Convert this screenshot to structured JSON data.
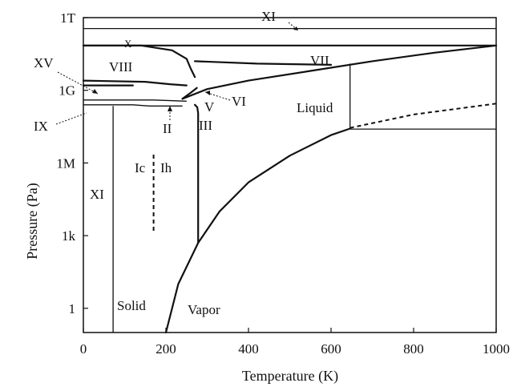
{
  "chart_data": {
    "type": "phase-diagram",
    "xlabel": "Temperature (K)",
    "ylabel": "Pressure (Pa)",
    "xlim": [
      0,
      1000
    ],
    "ylim_log10": [
      -1,
      12
    ],
    "x_ticks": [
      "0",
      "200",
      "400",
      "600",
      "800",
      "1000"
    ],
    "y_ticks": [
      {
        "label": "1",
        "log10": 0
      },
      {
        "label": "1k",
        "log10": 3
      },
      {
        "label": "1M",
        "log10": 6
      },
      {
        "label": "1G",
        "log10": 9
      },
      {
        "label": "1T",
        "log10": 12
      }
    ],
    "region_labels": [
      "XI",
      "X",
      "VIII",
      "VII",
      "XV",
      "VI",
      "Liquid",
      "V",
      "IX",
      "II",
      "III",
      "Ic",
      "Ih",
      "XI",
      "Solid",
      "Vapor"
    ],
    "boundaries": [
      {
        "name": "sublimation",
        "points": [
          [
            200,
            -1
          ],
          [
            230,
            1
          ],
          [
            278,
            2.7
          ],
          [
            330,
            4
          ],
          [
            400,
            5.2
          ],
          [
            500,
            6.3
          ],
          [
            600,
            7.15
          ],
          [
            646,
            7.42
          ]
        ]
      },
      {
        "name": "vaporization",
        "points": [
          [
            278,
            2.7
          ],
          [
            278,
            8.05
          ],
          [
            276,
            8.3
          ],
          [
            270,
            8.4
          ]
        ]
      },
      {
        "name": "melting-upper",
        "points": [
          [
            240,
            8.65
          ],
          [
            300,
            9.05
          ],
          [
            400,
            9.4
          ],
          [
            550,
            9.8
          ],
          [
            700,
            10.2
          ],
          [
            850,
            10.55
          ],
          [
            1000,
            10.85
          ]
        ]
      },
      {
        "name": "ice-XV-VIII",
        "points": [
          [
            0,
            9.2
          ],
          [
            120,
            9.2
          ]
        ]
      },
      {
        "name": "ice-VII-VIII",
        "points": [
          [
            0,
            10.85
          ],
          [
            140,
            10.85
          ],
          [
            215,
            10.65
          ],
          [
            250,
            10.3
          ],
          [
            260,
            9.9
          ],
          [
            270,
            9.55
          ]
        ]
      },
      {
        "name": "ice-VIII-VI",
        "points": [
          [
            0,
            9.4
          ],
          [
            150,
            9.35
          ],
          [
            210,
            9.25
          ],
          [
            250,
            9.2
          ]
        ]
      },
      {
        "name": "ice-VII-liquid",
        "points": [
          [
            270,
            10.2
          ],
          [
            420,
            10.1
          ],
          [
            600,
            10.05
          ]
        ]
      },
      {
        "name": "ice-X",
        "points": [
          [
            0,
            11.55
          ],
          [
            1000,
            11.55
          ]
        ]
      },
      {
        "name": "ice-X-VIII",
        "points": [
          [
            0,
            10.85
          ],
          [
            1000,
            10.85
          ]
        ]
      },
      {
        "name": "ice-II-III",
        "points": [
          [
            0,
            8.6
          ],
          [
            170,
            8.6
          ],
          [
            250,
            8.55
          ]
        ]
      },
      {
        "name": "ice-IX",
        "points": [
          [
            0,
            8.4
          ],
          [
            120,
            8.4
          ],
          [
            160,
            8.35
          ],
          [
            240,
            8.35
          ]
        ]
      },
      {
        "name": "ice-XI-Ih",
        "points": [
          [
            72,
            -1
          ],
          [
            72,
            8.35
          ]
        ]
      },
      {
        "name": "ice-Ic-Ih",
        "points": [
          [
            170,
            3.2
          ],
          [
            170,
            6.4
          ]
        ]
      },
      {
        "name": "liquid-vertical",
        "points": [
          [
            646,
            7.42
          ],
          [
            646,
            10.1
          ]
        ]
      },
      {
        "name": "critical-extension",
        "points": [
          [
            646,
            7.4
          ],
          [
            1000,
            7.4
          ]
        ]
      },
      {
        "name": "supercritical",
        "points": [
          [
            646,
            7.45
          ],
          [
            800,
            8.0
          ],
          [
            1000,
            8.45
          ]
        ]
      },
      {
        "name": "ice-VI-V",
        "points": [
          [
            240,
            8.65
          ],
          [
            260,
            8.9
          ],
          [
            275,
            9.1
          ]
        ]
      }
    ]
  }
}
